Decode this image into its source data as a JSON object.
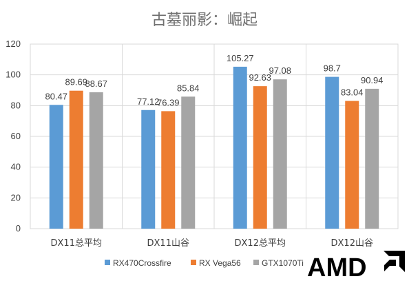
{
  "chart_data": {
    "type": "bar",
    "title": "古墓丽影：崛起",
    "categories": [
      "DX11总平均",
      "DX11山谷",
      "DX12总平均",
      "DX12山谷"
    ],
    "series": [
      {
        "name": "RX470Crossfire",
        "color": "#5B9BD5",
        "values": [
          80.47,
          77.12,
          105.27,
          98.7
        ]
      },
      {
        "name": "RX Vega56",
        "color": "#ED7D31",
        "values": [
          89.69,
          76.39,
          92.63,
          83.04
        ]
      },
      {
        "name": "GTX1070Ti",
        "color": "#A5A5A5",
        "values": [
          88.67,
          85.84,
          97.08,
          90.94
        ]
      }
    ],
    "xlabel": "",
    "ylabel": "",
    "ylim": [
      0,
      120
    ],
    "yticks": [
      0,
      20,
      40,
      60,
      80,
      100,
      120
    ],
    "grid": true,
    "legend": "bottom",
    "data_labels": [
      [
        "80.47",
        "77.12",
        "105.27",
        "98.7"
      ],
      [
        "89.69",
        "76.39",
        "92.63",
        "83.04"
      ],
      [
        "88.67",
        "85.84",
        "97.08",
        "90.94"
      ]
    ]
  },
  "logo": {
    "text": "AMD",
    "icon": "amd-arrow-icon"
  }
}
